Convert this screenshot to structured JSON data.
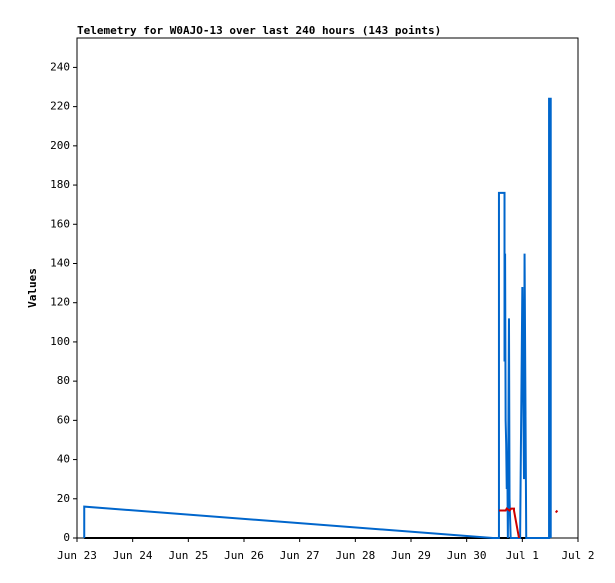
{
  "chart_data": {
    "type": "line",
    "title": "Telemetry for W0AJO-13 over last 240 hours (143 points)",
    "y_label": "Values",
    "xlim": [
      0,
      9
    ],
    "xticks": [
      {
        "value": 0,
        "label": "Jun 23"
      },
      {
        "value": 1,
        "label": "Jun 24"
      },
      {
        "value": 2,
        "label": "Jun 25"
      },
      {
        "value": 3,
        "label": "Jun 26"
      },
      {
        "value": 4,
        "label": "Jun 27"
      },
      {
        "value": 5,
        "label": "Jun 28"
      },
      {
        "value": 6,
        "label": "Jun 29"
      },
      {
        "value": 7,
        "label": "Jun 30"
      },
      {
        "value": 8,
        "label": "Jul 1"
      },
      {
        "value": 9,
        "label": "Jul 2"
      }
    ],
    "ylim": [
      0,
      255
    ],
    "yticks": [
      0,
      20,
      40,
      60,
      80,
      100,
      120,
      140,
      160,
      180,
      200,
      220,
      240
    ],
    "series": [
      {
        "color": "#000000",
        "x": [
          0.13,
          8.45
        ],
        "values": [
          0,
          0
        ]
      },
      {
        "color": "#0066cc",
        "x": [
          0.13,
          0.13,
          7.47,
          7.58,
          7.58,
          7.68,
          7.68,
          7.69,
          7.7,
          7.71,
          7.72,
          7.73,
          7.74,
          7.76,
          7.77,
          7.79,
          7.8,
          7.96,
          7.97,
          7.99,
          8.0,
          8.03,
          8.04,
          8.07,
          8.08,
          8.48,
          8.48,
          8.51,
          8.51
        ],
        "values": [
          0,
          16,
          0,
          0,
          176,
          176,
          90,
          145,
          60,
          48,
          25,
          40,
          0,
          112,
          20,
          0,
          0,
          0,
          32,
          95,
          128,
          30,
          145,
          0,
          0,
          0,
          224,
          224,
          0
        ]
      },
      {
        "color": "#cc0000",
        "x": [
          7.58,
          7.7,
          7.72,
          7.77,
          7.8,
          7.85,
          7.85,
          7.94,
          8.55,
          8.6,
          8.63
        ],
        "values": [
          14,
          14,
          15,
          14,
          15,
          15,
          14,
          0,
          null,
          13,
          14
        ]
      }
    ]
  }
}
